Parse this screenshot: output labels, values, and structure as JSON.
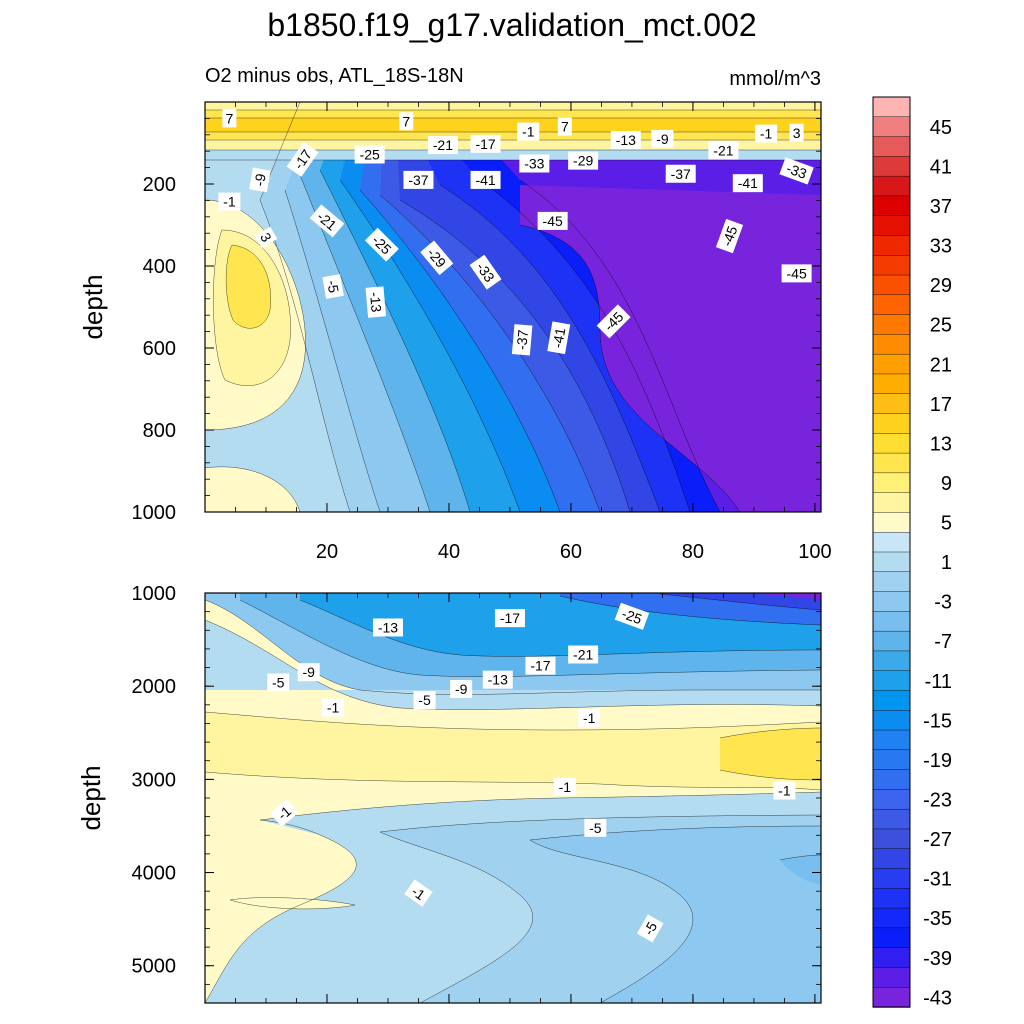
{
  "chart_data": {
    "type": "contour",
    "title": "b1850.f19_g17.validation_mct.002",
    "subtitle_left": "O2 minus obs, ATL_18S-18N",
    "subtitle_right": "mmol/m^3",
    "ylabel": "depth",
    "top_panel": {
      "ylim": [
        1000,
        0
      ],
      "xlim": [
        0,
        101
      ],
      "yticks": [
        "200",
        "400",
        "600",
        "800",
        "1000"
      ],
      "ytick_values": [
        200,
        400,
        600,
        800,
        1000
      ],
      "xticks": [
        "20",
        "40",
        "60",
        "80",
        "100"
      ],
      "xtick_values": [
        20,
        40,
        60,
        80,
        100
      ],
      "contour_labels": [
        {
          "text": "7",
          "x": 4,
          "y": 40,
          "angle": 0
        },
        {
          "text": "7",
          "x": 33,
          "y": 47,
          "angle": 0
        },
        {
          "text": "-1",
          "x": 53,
          "y": 72,
          "angle": 0
        },
        {
          "text": "7",
          "x": 59,
          "y": 60,
          "angle": 0
        },
        {
          "text": "-13",
          "x": 69,
          "y": 93,
          "angle": 0
        },
        {
          "text": "-9",
          "x": 75,
          "y": 90,
          "angle": 0
        },
        {
          "text": "-1",
          "x": 92,
          "y": 77,
          "angle": 0
        },
        {
          "text": "3",
          "x": 97,
          "y": 75,
          "angle": 0
        },
        {
          "text": "-21",
          "x": 39,
          "y": 105,
          "angle": 0
        },
        {
          "text": "-17",
          "x": 46,
          "y": 102,
          "angle": 0
        },
        {
          "text": "-25",
          "x": 27,
          "y": 128,
          "angle": 0
        },
        {
          "text": "-21",
          "x": 85,
          "y": 118,
          "angle": 0
        },
        {
          "text": "-17",
          "x": 16,
          "y": 140,
          "angle": -55
        },
        {
          "text": "-33",
          "x": 54,
          "y": 150,
          "angle": 0
        },
        {
          "text": "-29",
          "x": 62,
          "y": 143,
          "angle": 0
        },
        {
          "text": "-37",
          "x": 78,
          "y": 175,
          "angle": 0
        },
        {
          "text": "-33",
          "x": 97,
          "y": 168,
          "angle": 20
        },
        {
          "text": "-37",
          "x": 35,
          "y": 190,
          "angle": 0
        },
        {
          "text": "-41",
          "x": 46,
          "y": 190,
          "angle": 0
        },
        {
          "text": "-41",
          "x": 89,
          "y": 198,
          "angle": 0
        },
        {
          "text": "-9",
          "x": 9,
          "y": 190,
          "angle": -80
        },
        {
          "text": "-1",
          "x": 4,
          "y": 243,
          "angle": 0
        },
        {
          "text": "-21",
          "x": 20,
          "y": 290,
          "angle": 40
        },
        {
          "text": "-45",
          "x": 57,
          "y": 290,
          "angle": 0
        },
        {
          "text": "-45",
          "x": 86,
          "y": 327,
          "angle": -70
        },
        {
          "text": "3",
          "x": 10,
          "y": 330,
          "angle": 60
        },
        {
          "text": "-25",
          "x": 29,
          "y": 348,
          "angle": 45
        },
        {
          "text": "-29",
          "x": 38,
          "y": 380,
          "angle": 50
        },
        {
          "text": "-33",
          "x": 46,
          "y": 415,
          "angle": 55
        },
        {
          "text": "-45",
          "x": 97,
          "y": 418,
          "angle": 0
        },
        {
          "text": "-5",
          "x": 21,
          "y": 450,
          "angle": 80
        },
        {
          "text": "-13",
          "x": 28,
          "y": 488,
          "angle": 85
        },
        {
          "text": "-45",
          "x": 67,
          "y": 535,
          "angle": -45
        },
        {
          "text": "-37",
          "x": 52,
          "y": 580,
          "angle": -85
        },
        {
          "text": "-41",
          "x": 58,
          "y": 575,
          "angle": -80
        }
      ]
    },
    "bottom_panel": {
      "ylim": [
        5400,
        1000
      ],
      "xlim": [
        0,
        101
      ],
      "yticks": [
        "1000",
        "2000",
        "3000",
        "4000",
        "5000"
      ],
      "ytick_values": [
        1000,
        2000,
        3000,
        4000,
        5000
      ],
      "contour_labels": [
        {
          "text": "-13",
          "x": 30,
          "y": 1370,
          "angle": 0
        },
        {
          "text": "-17",
          "x": 50,
          "y": 1270,
          "angle": 0
        },
        {
          "text": "-25",
          "x": 70,
          "y": 1250,
          "angle": 20
        },
        {
          "text": "-21",
          "x": 62,
          "y": 1660,
          "angle": 0
        },
        {
          "text": "-17",
          "x": 55,
          "y": 1780,
          "angle": 0
        },
        {
          "text": "-13",
          "x": 48,
          "y": 1930,
          "angle": 0
        },
        {
          "text": "-9",
          "x": 42,
          "y": 2030,
          "angle": 0
        },
        {
          "text": "-9",
          "x": 17,
          "y": 1850,
          "angle": 0
        },
        {
          "text": "-5",
          "x": 12,
          "y": 1960,
          "angle": 0
        },
        {
          "text": "-5",
          "x": 36,
          "y": 2150,
          "angle": 0
        },
        {
          "text": "-1",
          "x": 21,
          "y": 2230,
          "angle": 0
        },
        {
          "text": "-1",
          "x": 63,
          "y": 2340,
          "angle": 0
        },
        {
          "text": "-1",
          "x": 59,
          "y": 3080,
          "angle": 0
        },
        {
          "text": "-1",
          "x": 95,
          "y": 3120,
          "angle": 0
        },
        {
          "text": "-1",
          "x": 13,
          "y": 3360,
          "angle": -40
        },
        {
          "text": "-5",
          "x": 64,
          "y": 3520,
          "angle": 0
        },
        {
          "text": "-1",
          "x": 35,
          "y": 4220,
          "angle": 35
        },
        {
          "text": "-5",
          "x": 73,
          "y": 4600,
          "angle": -60
        }
      ]
    },
    "colorbar": {
      "levels": [
        45,
        43,
        41,
        39,
        37,
        35,
        33,
        31,
        29,
        27,
        25,
        23,
        21,
        19,
        17,
        15,
        13,
        11,
        9,
        7,
        5,
        3,
        1,
        -1,
        -3,
        -5,
        -7,
        -9,
        -11,
        -13,
        -15,
        -17,
        -19,
        -21,
        -23,
        -25,
        -27,
        -29,
        -31,
        -33,
        -35,
        -37,
        -39,
        -41,
        -43,
        -45
      ],
      "labels": [
        "45",
        "41",
        "37",
        "33",
        "29",
        "25",
        "21",
        "17",
        "13",
        "9",
        "5",
        "1",
        "-3",
        "-7",
        "-11",
        "-15",
        "-19",
        "-23",
        "-27",
        "-31",
        "-35",
        "-39",
        "-43"
      ],
      "colors": [
        "#ffb4b4",
        "#f08080",
        "#e65a5a",
        "#dd3a3a",
        "#d81818",
        "#dd0000",
        "#e61000",
        "#f02800",
        "#f53c00",
        "#fa5000",
        "#ff6400",
        "#ff7800",
        "#ff8c00",
        "#ffa000",
        "#ffae00",
        "#ffbe14",
        "#ffd21e",
        "#ffde32",
        "#ffe650",
        "#fff078",
        "#fff5a0",
        "#fffac8",
        "#c8e6f5",
        "#b4dcf0",
        "#a0d2f0",
        "#8cc8f0",
        "#78beee",
        "#5fb4ec",
        "#3caaea",
        "#1ea0ea",
        "#0096f0",
        "#0a8cf0",
        "#1e82f0",
        "#2878f0",
        "#326ef0",
        "#3c64ee",
        "#3c5ae6",
        "#3c50dc",
        "#3246e6",
        "#283cf0",
        "#1e32f5",
        "#1428fa",
        "#0a1efa",
        "#321ef0",
        "#5a1ee6",
        "#7824dc"
      ]
    }
  }
}
